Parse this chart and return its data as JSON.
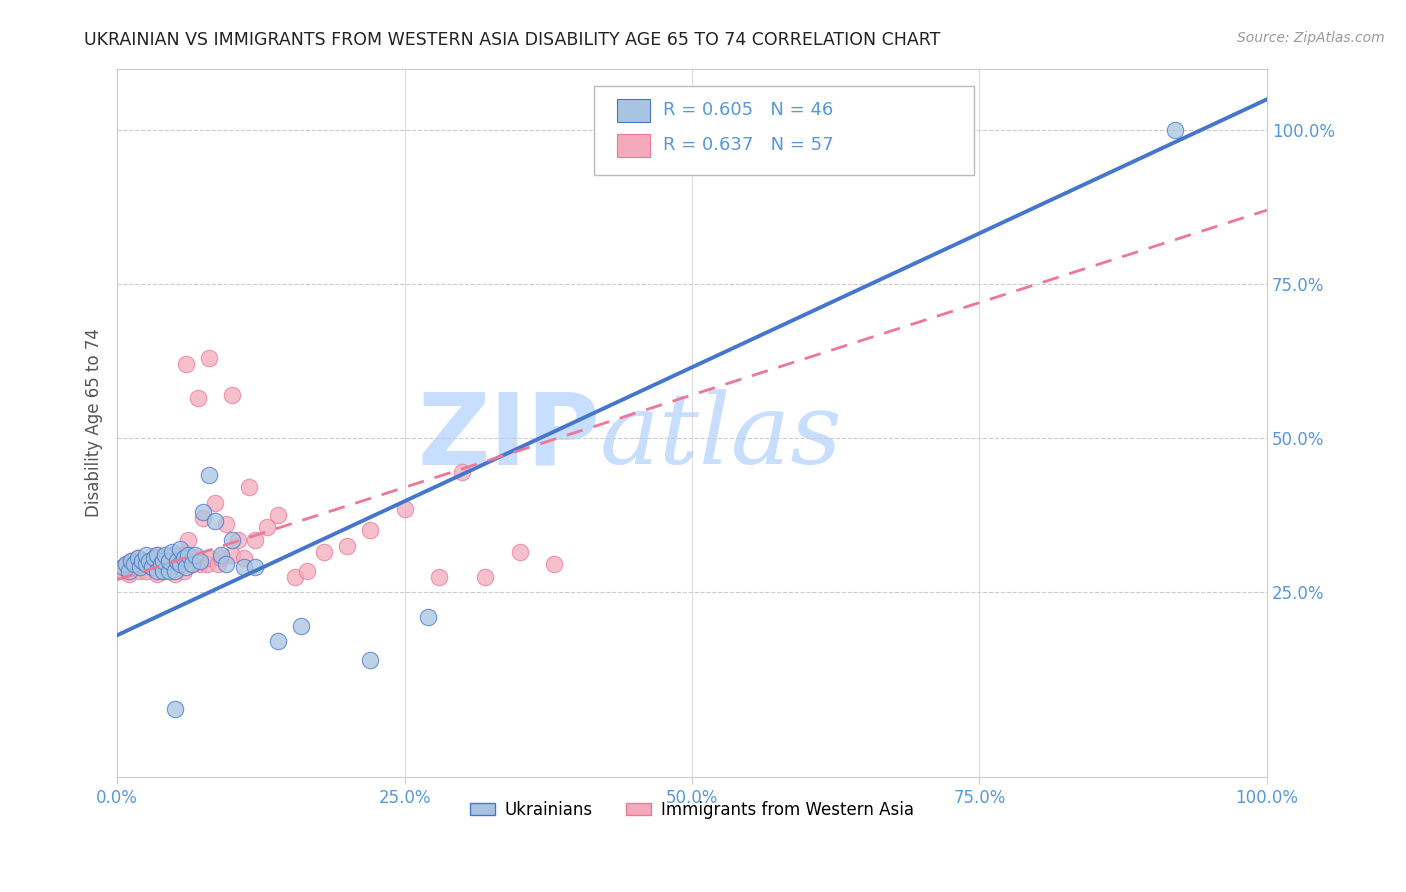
{
  "title": "UKRAINIAN VS IMMIGRANTS FROM WESTERN ASIA DISABILITY AGE 65 TO 74 CORRELATION CHART",
  "source": "Source: ZipAtlas.com",
  "ylabel": "Disability Age 65 to 74",
  "legend_label_1": "Ukrainians",
  "legend_label_2": "Immigrants from Western Asia",
  "r1": 0.605,
  "n1": 46,
  "r2": 0.637,
  "n2": 57,
  "xlim": [
    0.0,
    1.0
  ],
  "ylim": [
    -0.05,
    1.1
  ],
  "xticks": [
    0.0,
    0.25,
    0.5,
    0.75,
    1.0
  ],
  "yticks": [
    0.25,
    0.5,
    0.75,
    1.0
  ],
  "xticklabels": [
    "0.0%",
    "25.0%",
    "50.0%",
    "75.0%",
    "100.0%"
  ],
  "yticklabels": [
    "25.0%",
    "50.0%",
    "75.0%",
    "100.0%"
  ],
  "color_blue": "#A8C4E0",
  "color_pink": "#F4AABB",
  "color_blue_line": "#4477CC",
  "color_pink_line": "#EE7799",
  "background_color": "#FFFFFF",
  "grid_color": "#CCCCCC",
  "title_color": "#222222",
  "axis_color": "#5599DD",
  "watermark_color": "#D8EEFF",
  "blue_scatter_x": [
    0.005,
    0.008,
    0.01,
    0.012,
    0.015,
    0.018,
    0.02,
    0.022,
    0.025,
    0.025,
    0.028,
    0.03,
    0.032,
    0.035,
    0.035,
    0.038,
    0.04,
    0.04,
    0.042,
    0.045,
    0.045,
    0.048,
    0.05,
    0.052,
    0.055,
    0.055,
    0.058,
    0.06,
    0.062,
    0.065,
    0.068,
    0.072,
    0.075,
    0.08,
    0.085,
    0.09,
    0.095,
    0.1,
    0.11,
    0.12,
    0.14,
    0.16,
    0.22,
    0.27,
    0.92,
    0.05
  ],
  "blue_scatter_y": [
    0.29,
    0.295,
    0.285,
    0.3,
    0.295,
    0.305,
    0.29,
    0.3,
    0.295,
    0.31,
    0.3,
    0.29,
    0.305,
    0.285,
    0.31,
    0.295,
    0.285,
    0.3,
    0.31,
    0.285,
    0.3,
    0.315,
    0.285,
    0.3,
    0.295,
    0.32,
    0.305,
    0.29,
    0.31,
    0.295,
    0.31,
    0.3,
    0.38,
    0.44,
    0.365,
    0.31,
    0.295,
    0.335,
    0.29,
    0.29,
    0.17,
    0.195,
    0.14,
    0.21,
    1.0,
    0.06
  ],
  "pink_scatter_x": [
    0.005,
    0.008,
    0.01,
    0.012,
    0.015,
    0.018,
    0.02,
    0.022,
    0.025,
    0.028,
    0.03,
    0.032,
    0.035,
    0.035,
    0.038,
    0.04,
    0.042,
    0.045,
    0.048,
    0.05,
    0.052,
    0.055,
    0.058,
    0.06,
    0.062,
    0.065,
    0.068,
    0.072,
    0.075,
    0.078,
    0.08,
    0.085,
    0.088,
    0.09,
    0.095,
    0.1,
    0.105,
    0.11,
    0.115,
    0.12,
    0.13,
    0.14,
    0.155,
    0.165,
    0.18,
    0.2,
    0.22,
    0.25,
    0.28,
    0.3,
    0.32,
    0.35,
    0.38,
    0.1,
    0.06,
    0.07,
    0.08
  ],
  "pink_scatter_y": [
    0.285,
    0.295,
    0.28,
    0.3,
    0.29,
    0.305,
    0.285,
    0.295,
    0.285,
    0.3,
    0.29,
    0.305,
    0.28,
    0.31,
    0.295,
    0.285,
    0.305,
    0.295,
    0.31,
    0.28,
    0.295,
    0.31,
    0.285,
    0.3,
    0.335,
    0.295,
    0.305,
    0.295,
    0.37,
    0.295,
    0.305,
    0.395,
    0.295,
    0.305,
    0.36,
    0.31,
    0.335,
    0.305,
    0.42,
    0.335,
    0.355,
    0.375,
    0.275,
    0.285,
    0.315,
    0.325,
    0.35,
    0.385,
    0.275,
    0.445,
    0.275,
    0.315,
    0.295,
    0.57,
    0.62,
    0.565,
    0.63
  ],
  "blue_line_slope": 0.87,
  "blue_line_intercept": 0.18,
  "pink_line_slope": 0.6,
  "pink_line_intercept": 0.27
}
